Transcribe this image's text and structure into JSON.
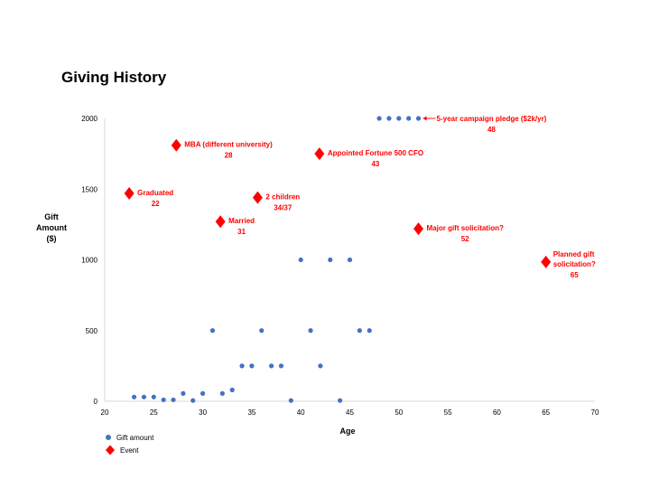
{
  "chart_data": {
    "type": "scatter",
    "title": "Giving History",
    "xlabel": "Age",
    "ylabel": "Gift Amount ($)",
    "xlim": [
      20,
      70
    ],
    "ylim": [
      0,
      2000
    ],
    "xticks": [
      20,
      25,
      30,
      35,
      40,
      45,
      50,
      55,
      60,
      65,
      70
    ],
    "yticks": [
      0,
      500,
      1000,
      1500,
      2000
    ],
    "grid": false,
    "legend_position": "bottom-left",
    "series": [
      {
        "name": "Gift amount",
        "marker": "circle",
        "color": "#4472C4",
        "points": [
          [
            23,
            30
          ],
          [
            24,
            30
          ],
          [
            25,
            30
          ],
          [
            26,
            10
          ],
          [
            27,
            10
          ],
          [
            28,
            55
          ],
          [
            29,
            5
          ],
          [
            30,
            55
          ],
          [
            31,
            500
          ],
          [
            32,
            55
          ],
          [
            33,
            80
          ],
          [
            34,
            250
          ],
          [
            35,
            250
          ],
          [
            36,
            500
          ],
          [
            37,
            250
          ],
          [
            38,
            250
          ],
          [
            39,
            5
          ],
          [
            40,
            1000
          ],
          [
            41,
            500
          ],
          [
            42,
            250
          ],
          [
            43,
            1000
          ],
          [
            44,
            5
          ],
          [
            45,
            1000
          ],
          [
            46,
            500
          ],
          [
            47,
            500
          ],
          [
            48,
            2000
          ],
          [
            49,
            2000
          ],
          [
            50,
            2000
          ],
          [
            51,
            2000
          ],
          [
            52,
            2000
          ]
        ]
      },
      {
        "name": "Event",
        "marker": "diamond",
        "color": "#FF0000",
        "points": [
          [
            22.5,
            1470
          ],
          [
            27.3,
            1810
          ],
          [
            31.8,
            1270
          ],
          [
            35.6,
            1440
          ],
          [
            41.9,
            1750
          ],
          [
            52,
            1220
          ],
          [
            65,
            985
          ]
        ]
      }
    ],
    "annotations": [
      {
        "label": "Graduated",
        "sub": "22",
        "x": 22.5,
        "y": 1470
      },
      {
        "label": "MBA (different university)",
        "sub": "28",
        "x": 27.3,
        "y": 1810
      },
      {
        "label": "Married",
        "sub": "31",
        "x": 31.8,
        "y": 1270
      },
      {
        "label": "2 children",
        "sub": "34/37",
        "x": 35.6,
        "y": 1440
      },
      {
        "label": "Appointed Fortune 500 CFO",
        "sub": "43",
        "x": 41.9,
        "y": 1750
      },
      {
        "label": "Major gift solicitation?",
        "sub": "52",
        "x": 52,
        "y": 1220
      },
      {
        "label": "Planned gift",
        "label2": "solicitation?",
        "sub": "65",
        "x": 65,
        "y": 985
      },
      {
        "label": "5-year campaign pledge ($2k/yr)",
        "sub": "48",
        "x": 52,
        "y": 2000
      }
    ]
  }
}
